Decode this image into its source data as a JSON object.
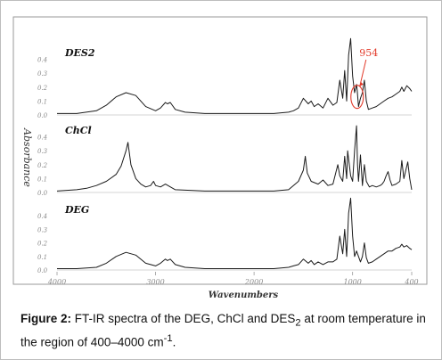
{
  "chart_data": {
    "type": "line",
    "xlabel": "Wavenumbers",
    "ylabel": "Absorbance",
    "x_ticks": [
      4000,
      3000,
      2000,
      1000,
      400
    ],
    "x_tick_labels": [
      "4000",
      "3000",
      "2000",
      "1000",
      "400"
    ],
    "xlim": [
      4000,
      400
    ],
    "y_tick_labels": [
      "0.0",
      "0.1",
      "0.2",
      "0.3",
      "0.4"
    ],
    "ylim": [
      0,
      0.5
    ],
    "grid": false,
    "panels": [
      {
        "name": "DES2",
        "x": [
          4000,
          3800,
          3600,
          3500,
          3400,
          3300,
          3200,
          3100,
          3000,
          2950,
          2900,
          2880,
          2850,
          2800,
          2700,
          2500,
          2200,
          2000,
          1800,
          1650,
          1600,
          1550,
          1500,
          1450,
          1420,
          1390,
          1350,
          1300,
          1250,
          1200,
          1160,
          1130,
          1100,
          1080,
          1060,
          1040,
          1020,
          1000,
          980,
          960,
          954,
          940,
          920,
          900,
          880,
          860,
          840,
          800,
          760,
          720,
          680,
          640,
          600,
          560,
          520,
          500,
          480,
          450,
          420,
          400
        ],
        "y": [
          0.01,
          0.01,
          0.03,
          0.07,
          0.13,
          0.16,
          0.14,
          0.06,
          0.03,
          0.05,
          0.09,
          0.08,
          0.09,
          0.04,
          0.02,
          0.01,
          0.01,
          0.01,
          0.01,
          0.02,
          0.03,
          0.05,
          0.12,
          0.08,
          0.1,
          0.06,
          0.08,
          0.05,
          0.12,
          0.07,
          0.09,
          0.25,
          0.12,
          0.32,
          0.1,
          0.43,
          0.55,
          0.28,
          0.16,
          0.22,
          0.18,
          0.06,
          0.12,
          0.16,
          0.25,
          0.1,
          0.04,
          0.05,
          0.06,
          0.08,
          0.1,
          0.12,
          0.13,
          0.15,
          0.17,
          0.2,
          0.17,
          0.21,
          0.19,
          0.17
        ]
      },
      {
        "name": "ChCl",
        "x": [
          4000,
          3800,
          3700,
          3600,
          3500,
          3400,
          3350,
          3300,
          3280,
          3250,
          3200,
          3150,
          3100,
          3050,
          3020,
          3000,
          2950,
          2900,
          2800,
          2500,
          2000,
          1800,
          1650,
          1600,
          1550,
          1500,
          1480,
          1460,
          1420,
          1350,
          1300,
          1250,
          1200,
          1150,
          1130,
          1100,
          1080,
          1060,
          1050,
          1020,
          1000,
          980,
          960,
          950,
          940,
          920,
          900,
          880,
          860,
          830,
          800,
          760,
          720,
          700,
          680,
          660,
          640,
          620,
          600,
          560,
          520,
          500,
          480,
          460,
          440,
          420,
          400
        ],
        "y": [
          0.01,
          0.02,
          0.03,
          0.05,
          0.08,
          0.13,
          0.19,
          0.3,
          0.36,
          0.2,
          0.1,
          0.06,
          0.04,
          0.05,
          0.08,
          0.05,
          0.04,
          0.06,
          0.02,
          0.01,
          0.01,
          0.01,
          0.02,
          0.05,
          0.08,
          0.16,
          0.26,
          0.14,
          0.08,
          0.06,
          0.09,
          0.05,
          0.06,
          0.2,
          0.12,
          0.08,
          0.26,
          0.1,
          0.3,
          0.12,
          0.08,
          0.3,
          0.48,
          0.2,
          0.08,
          0.27,
          0.05,
          0.2,
          0.08,
          0.04,
          0.05,
          0.04,
          0.05,
          0.06,
          0.08,
          0.12,
          0.15,
          0.09,
          0.05,
          0.06,
          0.08,
          0.23,
          0.1,
          0.16,
          0.22,
          0.1,
          0.02
        ]
      },
      {
        "name": "DEG",
        "x": [
          4000,
          3800,
          3600,
          3500,
          3400,
          3300,
          3200,
          3100,
          3000,
          2950,
          2900,
          2880,
          2850,
          2800,
          2700,
          2500,
          2200,
          2000,
          1800,
          1650,
          1600,
          1550,
          1500,
          1450,
          1420,
          1390,
          1350,
          1300,
          1250,
          1200,
          1160,
          1130,
          1100,
          1080,
          1060,
          1040,
          1020,
          1000,
          980,
          960,
          940,
          920,
          900,
          880,
          860,
          840,
          800,
          760,
          720,
          680,
          640,
          600,
          560,
          520,
          500,
          480,
          450,
          420,
          400
        ],
        "y": [
          0.01,
          0.01,
          0.02,
          0.05,
          0.1,
          0.13,
          0.11,
          0.05,
          0.03,
          0.05,
          0.08,
          0.07,
          0.08,
          0.04,
          0.02,
          0.01,
          0.01,
          0.01,
          0.01,
          0.02,
          0.03,
          0.04,
          0.08,
          0.05,
          0.07,
          0.04,
          0.06,
          0.04,
          0.06,
          0.06,
          0.08,
          0.25,
          0.12,
          0.3,
          0.1,
          0.42,
          0.53,
          0.25,
          0.1,
          0.14,
          0.1,
          0.06,
          0.1,
          0.2,
          0.09,
          0.05,
          0.06,
          0.08,
          0.1,
          0.12,
          0.14,
          0.14,
          0.16,
          0.17,
          0.19,
          0.17,
          0.18,
          0.16,
          0.15
        ]
      }
    ],
    "annotation": {
      "label": "954",
      "x": 954,
      "panel": "DES2",
      "color": "#e23a2a"
    }
  },
  "caption": {
    "figure_label": "Figure 2:",
    "text_before_sub": " FT-IR spectra of the DEG, ChCl and DES",
    "subscript": "2",
    "text_after_sub": " at room temperature in the region of 400–4000 cm",
    "superscript": "-1",
    "text_end": "."
  }
}
